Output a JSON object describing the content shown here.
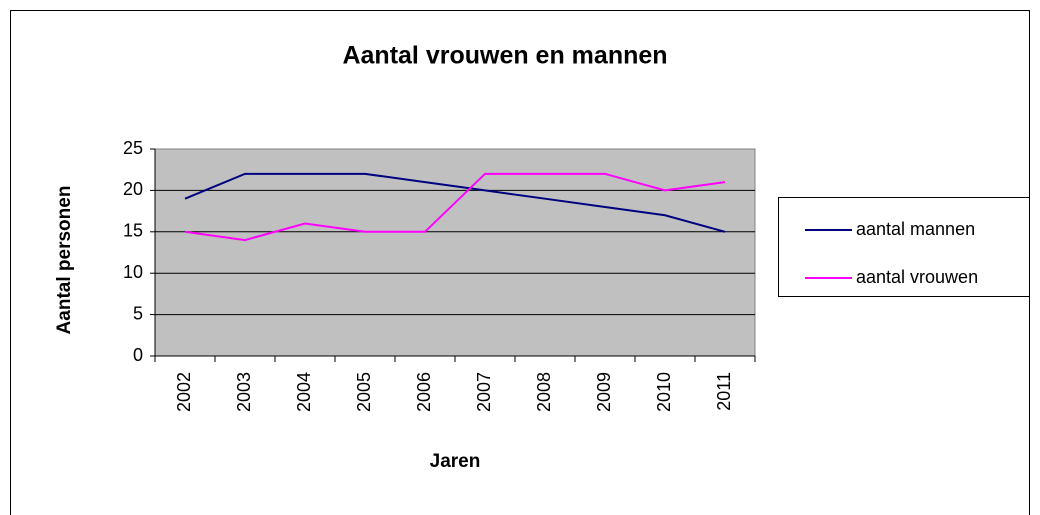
{
  "chart_data": {
    "type": "line",
    "title": "Aantal vrouwen en mannen",
    "x_label": "Jaren",
    "y_label": "Aantal personen",
    "categories": [
      "2002",
      "2003",
      "2004",
      "2005",
      "2006",
      "2007",
      "2008",
      "2009",
      "2010",
      "2011"
    ],
    "series": [
      {
        "name": "aantal mannen",
        "color": "#000080",
        "values": [
          19,
          22,
          22,
          22,
          21,
          20,
          19,
          18,
          17,
          15
        ]
      },
      {
        "name": "aantal vrouwen",
        "color": "#ff00ff",
        "values": [
          15,
          14,
          16,
          15,
          15,
          22,
          22,
          22,
          20,
          21
        ]
      }
    ],
    "ylim": [
      0,
      25
    ],
    "yticks": [
      0,
      5,
      10,
      15,
      20,
      25
    ],
    "grid": true,
    "legend": "right"
  }
}
